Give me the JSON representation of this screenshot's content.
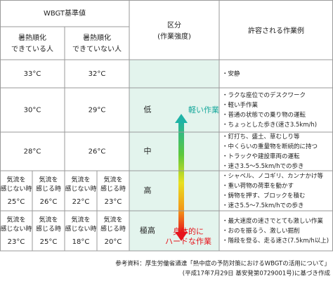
{
  "table": {
    "header": {
      "wbgt": "WBGT基準値",
      "acclimated": [
        "暑熱順化",
        "できている人"
      ],
      "not_acclimated": [
        "暑熱順化",
        "できていない人"
      ],
      "intensity": [
        "区分",
        "(作業強度)"
      ],
      "examples": "許容される作業例"
    },
    "rows": [
      {
        "wbgt": [
          "33°C",
          "32°C"
        ],
        "examples": [
          "・安静"
        ]
      },
      {
        "intensity": "低",
        "wbgt": [
          "30°C",
          "29°C"
        ],
        "examples": [
          "・ラクな座位でのデスクワーク",
          "・軽い手作業",
          "・普通の状態での乗り物の運転",
          "・ちょっとした歩き(速さ3.5km/h)"
        ]
      },
      {
        "intensity": "中",
        "wbgt": [
          "28°C",
          "26°C"
        ],
        "examples": [
          "・釘打ち、盛土、草むしり等",
          "・中くらいの重量物を断続的に持つ",
          "・トラックや建設車両の運転",
          "・速さ3.5～5.5km/hでの歩き"
        ]
      },
      {
        "intensity": "高",
        "wbgt": [
          {
            "condition": [
              "気流を",
              "感じない時"
            ],
            "value": "25°C"
          },
          {
            "condition": [
              "気流を",
              "感じる時"
            ],
            "value": "26°C"
          },
          {
            "condition": [
              "気流を",
              "感じない時"
            ],
            "value": "22°C"
          },
          {
            "condition": [
              "気流を",
              "感じる時"
            ],
            "value": "23°C"
          }
        ],
        "examples": [
          "・シャベル、ノコギリ、カンナかけ等",
          "・重い荷物の荷車を動かす",
          "・鋳物を押す、ブロックを積む",
          "・速さ5.5～7.5km/hでの歩き"
        ]
      },
      {
        "intensity": "極高",
        "wbgt": [
          {
            "condition": [
              "気流を",
              "感じない時"
            ],
            "value": "23°C"
          },
          {
            "condition": [
              "気流を",
              "感じる時"
            ],
            "value": "25°C"
          },
          {
            "condition": [
              "気流を",
              "感じない時"
            ],
            "value": "18°C"
          },
          {
            "condition": [
              "気流を",
              "感じる時"
            ],
            "value": "20°C"
          }
        ],
        "examples": [
          "・最大速度の速さでとても激しい作業",
          "・おのを振るう、激しい掘削",
          "・階段を登る、走る速さ(7.5km/h以上)"
        ]
      }
    ],
    "arrow": {
      "top": "軽い作業",
      "bottom": [
        "身体的に",
        "ハードな作業"
      ]
    }
  },
  "footnote": [
    "参考資料：厚生労働省通達「熱中症の予防対策におけるWBGTの活用について」",
    "(平成17年7月29日 基安発第0729001号)に基づき作成"
  ]
}
